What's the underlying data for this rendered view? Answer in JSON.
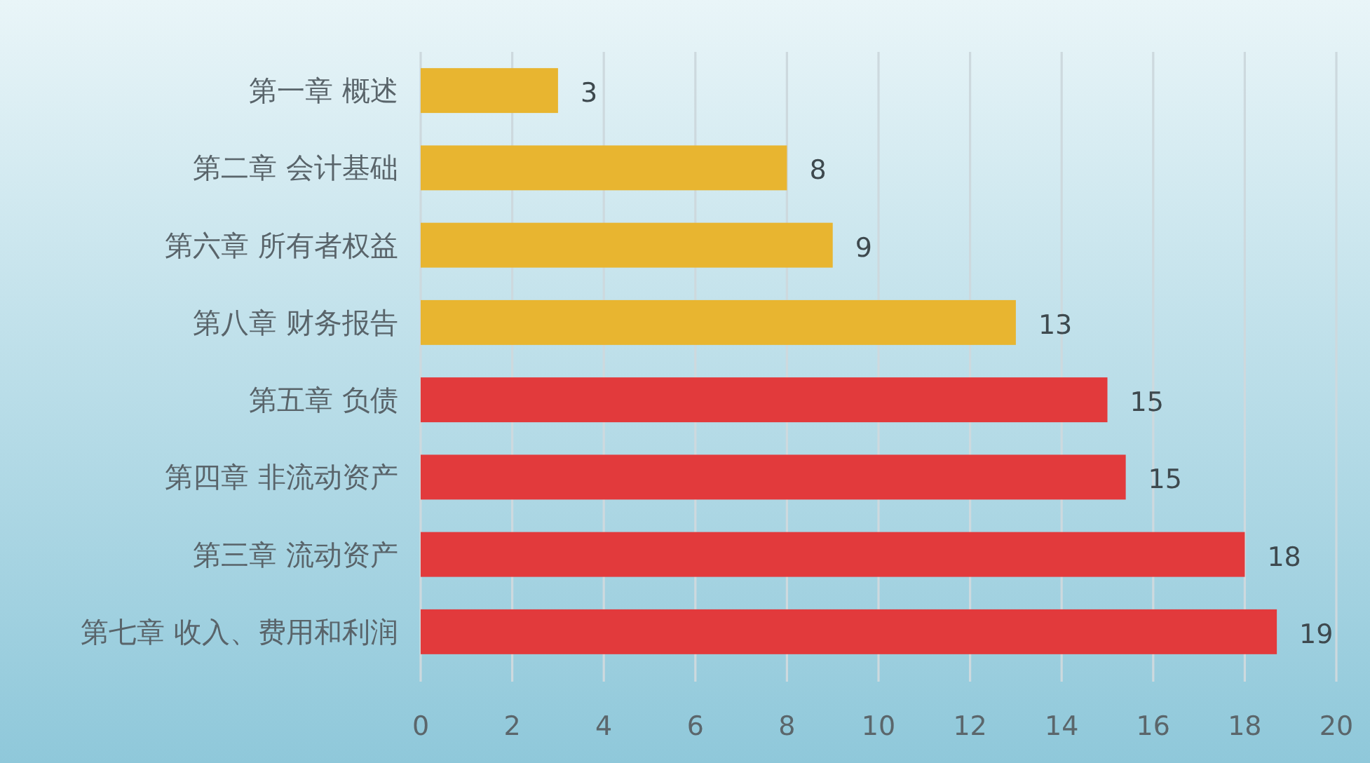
{
  "chart_data": {
    "type": "bar",
    "orientation": "horizontal",
    "categories": [
      "第一章 概述",
      "第二章 会计基础",
      "第六章 所有者权益",
      "第八章 财务报告",
      "第五章 负债",
      "第四章 非流动资产",
      "第三章 流动资产",
      "第七章 收入、费用和利润"
    ],
    "values": [
      3,
      8,
      9,
      13,
      15,
      15.4,
      18,
      18.7
    ],
    "value_labels": [
      "3",
      "8",
      "9",
      "13",
      "15",
      "15",
      "18",
      "19"
    ],
    "colors": [
      "#e8b530",
      "#e8b530",
      "#e8b530",
      "#e8b530",
      "#e23a3c",
      "#e23a3c",
      "#e23a3c",
      "#e23a3c"
    ],
    "xlim": [
      0,
      20
    ],
    "xticks": [
      0,
      2,
      4,
      6,
      8,
      10,
      12,
      14,
      16,
      18,
      20
    ],
    "grid": "x"
  }
}
